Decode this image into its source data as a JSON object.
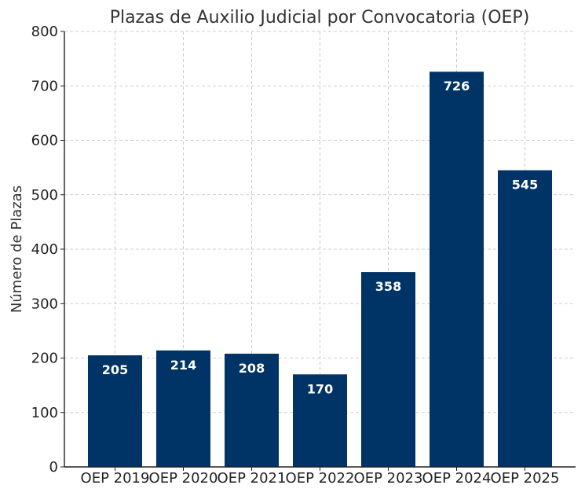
{
  "chart_data": {
    "type": "bar",
    "title": "Plazas de Auxilio Judicial por Convocatoria (OEP)",
    "xlabel": "",
    "ylabel": "Número de Plazas",
    "categories": [
      "OEP 2019",
      "OEP 2020",
      "OEP 2021",
      "OEP 2022",
      "OEP 2023",
      "OEP 2024",
      "OEP 2025"
    ],
    "values": [
      205,
      214,
      208,
      170,
      358,
      726,
      545
    ],
    "value_labels": [
      "205",
      "214",
      "208",
      "170",
      "358",
      "726",
      "545"
    ],
    "ylim": [
      0,
      800
    ],
    "yticks": [
      0,
      100,
      200,
      300,
      400,
      500,
      600,
      700,
      800
    ],
    "ytick_labels": [
      "0",
      "100",
      "200",
      "300",
      "400",
      "500",
      "600",
      "700",
      "800"
    ],
    "grid": true,
    "bar_color": "#003366"
  }
}
